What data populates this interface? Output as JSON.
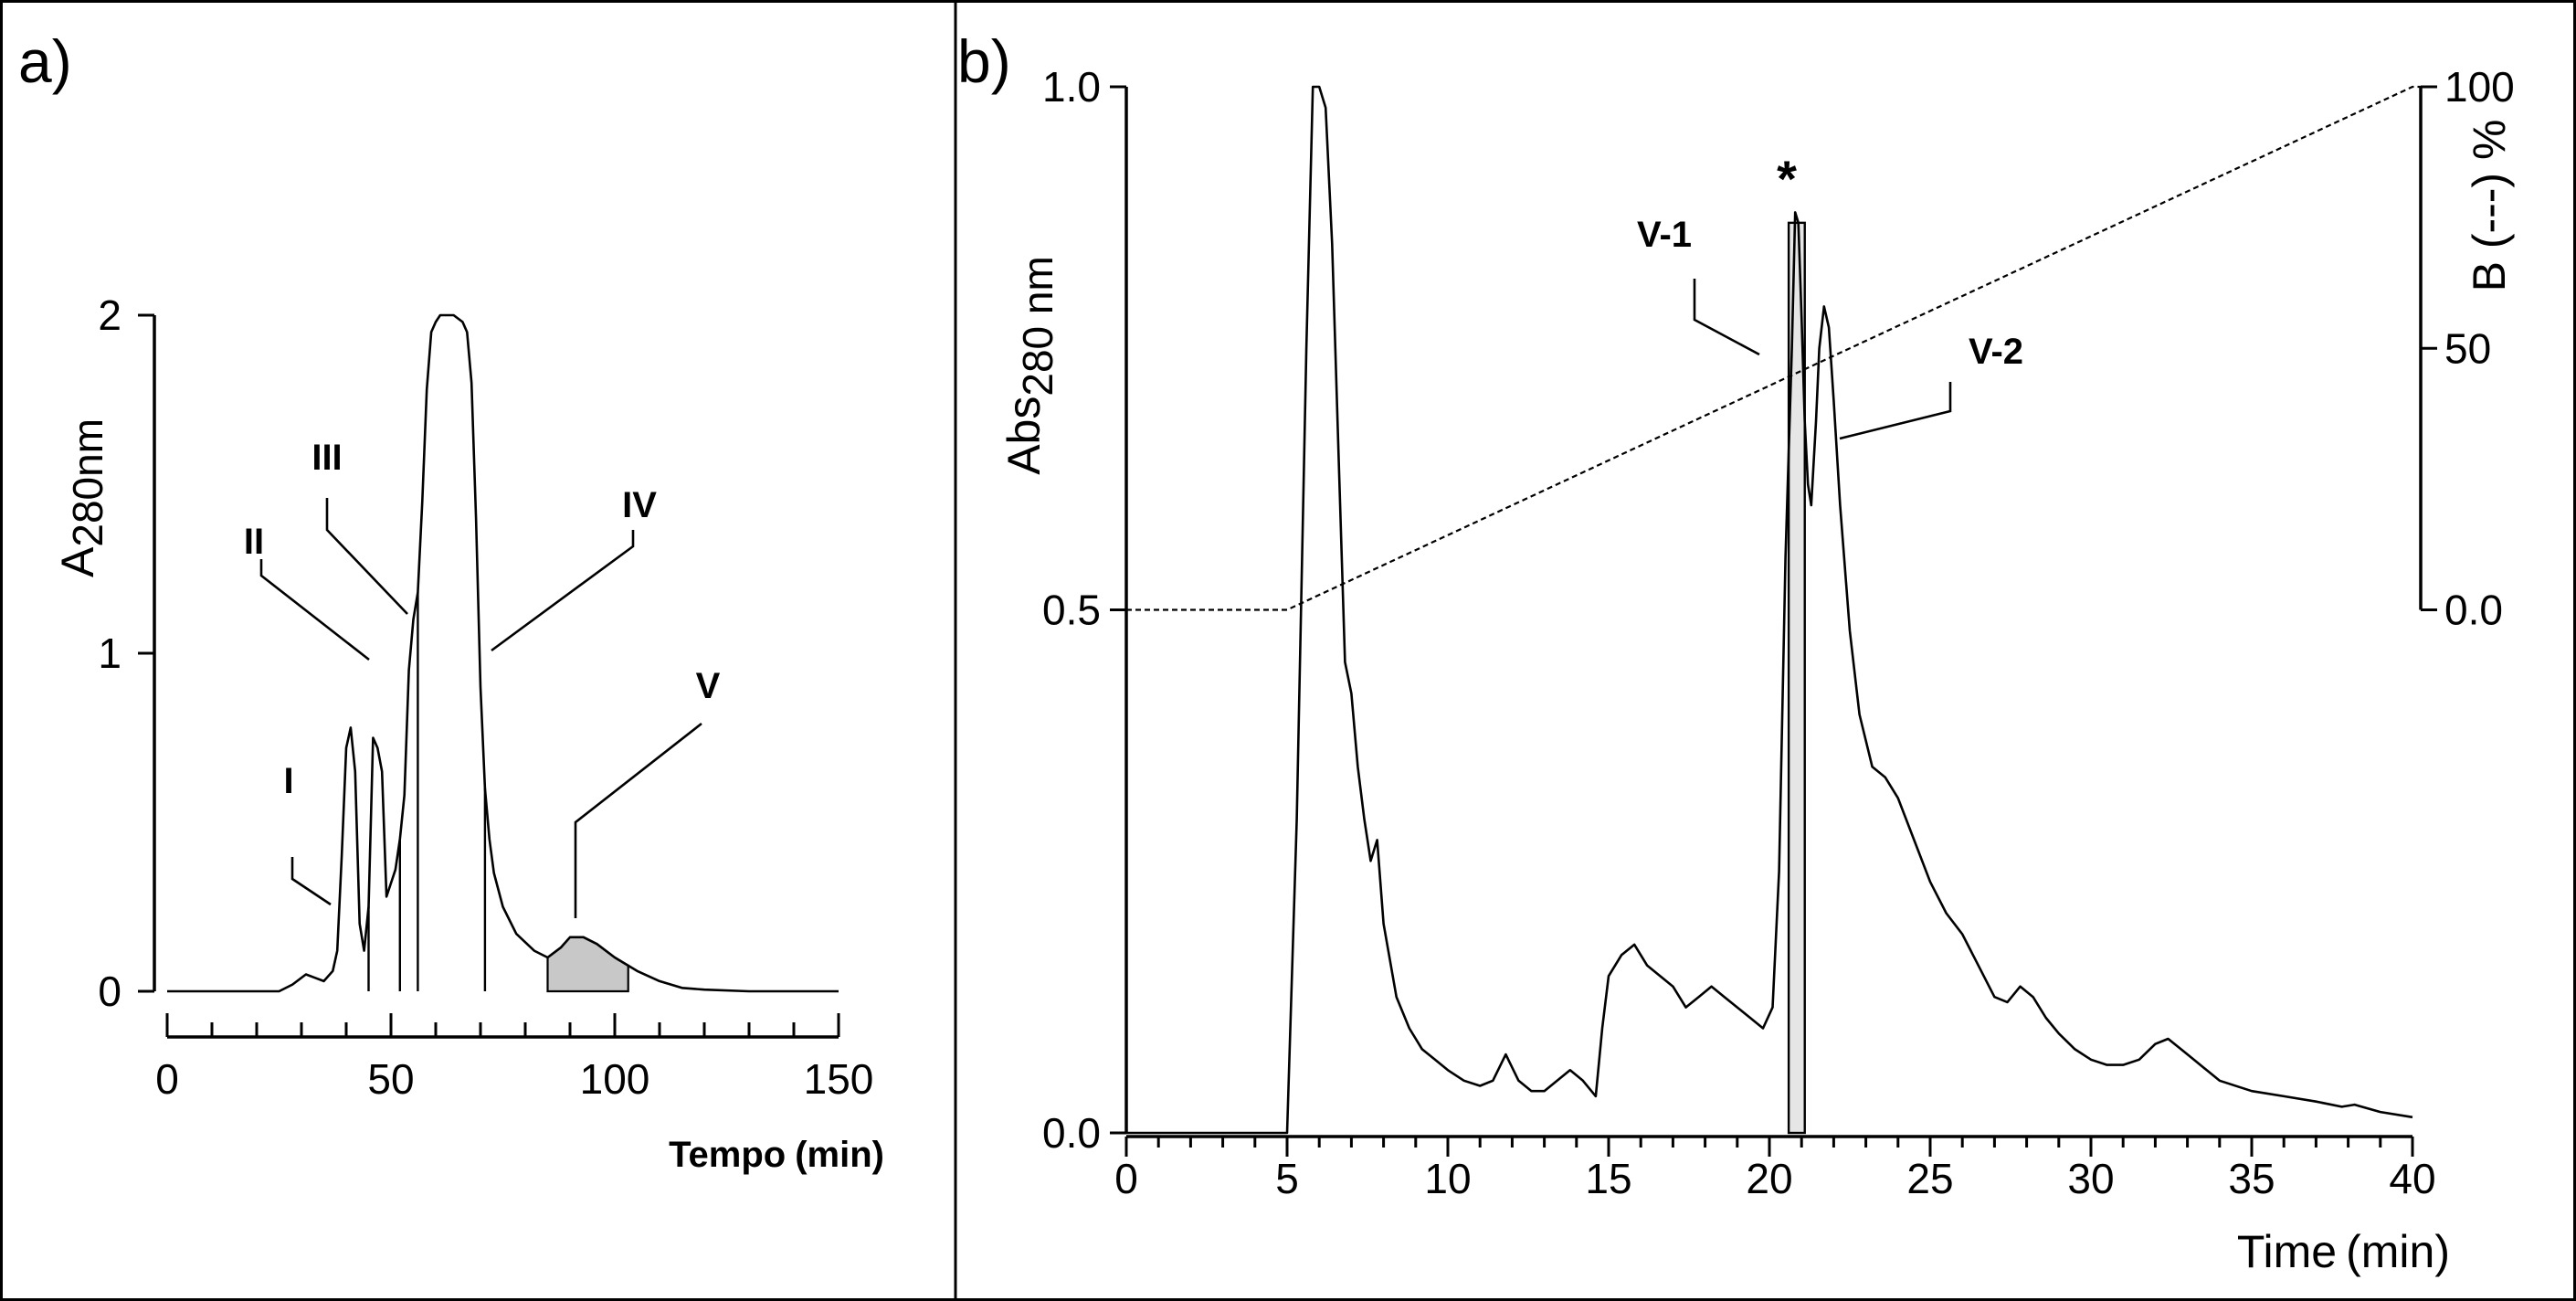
{
  "chart_data": [
    {
      "panel": "a)",
      "type": "line",
      "title": "",
      "xlabel": "Tempo (min)",
      "ylabel": "A280nm",
      "ylabel_main": "A",
      "ylabel_sub": "280nm",
      "xlabel_main": "Tempo",
      "xlabel_unit": "(min)",
      "xlim": [
        0,
        150
      ],
      "ylim": [
        0,
        2
      ],
      "xticks": [
        0,
        50,
        100,
        150
      ],
      "yticks": [
        0,
        1,
        2
      ],
      "xtick_labels": [
        "0",
        "50",
        "100",
        "150"
      ],
      "ytick_labels": [
        "0",
        "1",
        "2"
      ],
      "series": [
        {
          "name": "A280nm",
          "x": [
            0,
            25,
            28,
            31,
            33,
            35,
            37,
            38,
            39,
            40,
            41,
            42,
            43,
            44,
            45,
            46,
            47,
            48,
            49,
            50,
            51,
            52,
            53,
            54,
            55,
            56,
            57,
            58,
            59,
            60,
            61,
            62,
            64,
            66,
            67,
            68,
            69,
            70,
            71,
            72,
            73,
            75,
            78,
            82,
            85,
            88,
            90,
            93,
            96,
            100,
            105,
            110,
            115,
            120,
            130,
            150
          ],
          "y": [
            0,
            0,
            0.02,
            0.05,
            0.04,
            0.03,
            0.06,
            0.12,
            0.4,
            0.72,
            0.78,
            0.65,
            0.2,
            0.12,
            0.25,
            0.75,
            0.72,
            0.65,
            0.28,
            0.32,
            0.36,
            0.45,
            0.58,
            0.95,
            1.1,
            1.18,
            1.45,
            1.78,
            1.95,
            1.98,
            2.0,
            2.0,
            2.0,
            1.98,
            1.95,
            1.8,
            1.4,
            0.9,
            0.6,
            0.45,
            0.35,
            0.25,
            0.17,
            0.12,
            0.1,
            0.13,
            0.16,
            0.16,
            0.14,
            0.1,
            0.06,
            0.03,
            0.01,
            0.005,
            0,
            0
          ]
        }
      ],
      "fraction_cuts_min": [
        45,
        52,
        56,
        71
      ],
      "shaded_region_min": [
        85,
        103
      ],
      "peak_labels": [
        "I",
        "II",
        "III",
        "IV",
        "V"
      ]
    },
    {
      "panel": "b)",
      "type": "line",
      "title": "",
      "xlabel": "Time (min)",
      "xlabel_main": "Time",
      "xlabel_unit": "(min)",
      "ylabel": "Abs280 nm",
      "ylabel_main": "Abs",
      "ylabel_sub": "280 nm",
      "y2label": "B (---) %",
      "xlim": [
        0,
        40
      ],
      "ylim": [
        0,
        1.0
      ],
      "y2lim": [
        0,
        100
      ],
      "xticks": [
        0,
        5,
        10,
        15,
        20,
        25,
        30,
        35,
        40
      ],
      "yticks": [
        0.0,
        0.5,
        1.0
      ],
      "y2ticks": [
        0,
        50,
        100
      ],
      "xtick_labels": [
        "0",
        "5",
        "10",
        "15",
        "20",
        "25",
        "30",
        "35",
        "40"
      ],
      "ytick_labels": [
        "0.0",
        "0.5",
        "1.0"
      ],
      "y2tick_labels": [
        "0.0",
        "50",
        "100"
      ],
      "series": [
        {
          "name": "Abs 280 nm",
          "x": [
            0,
            5.0,
            5.3,
            5.6,
            5.8,
            6.0,
            6.2,
            6.4,
            6.6,
            6.8,
            7.0,
            7.2,
            7.4,
            7.6,
            7.8,
            8.0,
            8.4,
            8.8,
            9.2,
            9.6,
            10.0,
            10.5,
            11.0,
            11.4,
            11.8,
            12.2,
            12.6,
            13.0,
            13.4,
            13.8,
            14.2,
            14.6,
            14.8,
            15.0,
            15.4,
            15.8,
            16.2,
            16.6,
            17.0,
            17.4,
            17.8,
            18.2,
            18.6,
            19.0,
            19.4,
            19.8,
            20.1,
            20.3,
            20.5,
            20.7,
            20.8,
            20.9,
            21.0,
            21.1,
            21.2,
            21.3,
            21.45,
            21.55,
            21.7,
            21.85,
            22.0,
            22.2,
            22.5,
            22.8,
            23.2,
            23.6,
            24.0,
            24.5,
            25.0,
            25.5,
            26.0,
            26.5,
            27.0,
            27.4,
            27.8,
            28.2,
            28.6,
            29.0,
            29.5,
            30.0,
            30.5,
            31.0,
            31.5,
            32.0,
            32.4,
            32.8,
            33.2,
            33.6,
            34.0,
            35.0,
            36.0,
            37.0,
            37.8,
            38.2,
            39.0,
            40.0
          ],
          "y": [
            0,
            0,
            0.3,
            0.75,
            1.0,
            1.0,
            0.98,
            0.85,
            0.65,
            0.45,
            0.42,
            0.35,
            0.3,
            0.26,
            0.28,
            0.2,
            0.13,
            0.1,
            0.08,
            0.07,
            0.06,
            0.05,
            0.045,
            0.05,
            0.075,
            0.05,
            0.04,
            0.04,
            0.05,
            0.06,
            0.05,
            0.035,
            0.1,
            0.15,
            0.17,
            0.18,
            0.16,
            0.15,
            0.14,
            0.12,
            0.13,
            0.14,
            0.13,
            0.12,
            0.11,
            0.1,
            0.12,
            0.25,
            0.55,
            0.75,
            0.88,
            0.87,
            0.78,
            0.68,
            0.62,
            0.6,
            0.68,
            0.75,
            0.79,
            0.77,
            0.7,
            0.6,
            0.48,
            0.4,
            0.35,
            0.34,
            0.32,
            0.28,
            0.24,
            0.21,
            0.19,
            0.16,
            0.13,
            0.125,
            0.14,
            0.13,
            0.11,
            0.095,
            0.08,
            0.07,
            0.065,
            0.065,
            0.07,
            0.085,
            0.09,
            0.08,
            0.07,
            0.06,
            0.05,
            0.04,
            0.035,
            0.03,
            0.025,
            0.027,
            0.02,
            0.015
          ]
        },
        {
          "name": "B (---) %",
          "axis": "right",
          "x": [
            0,
            5,
            40
          ],
          "y": [
            0,
            0,
            100
          ]
        }
      ],
      "shaded_region_min": [
        20.6,
        21.1
      ],
      "annotations": [
        "*",
        "V-1",
        "V-2"
      ]
    }
  ]
}
